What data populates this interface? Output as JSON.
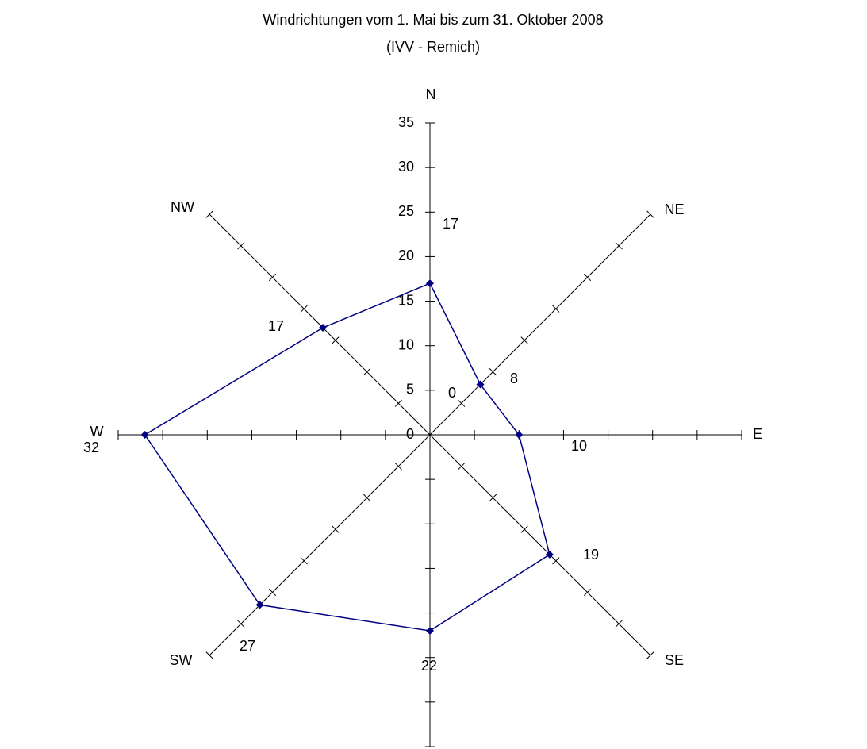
{
  "chart_data": {
    "type": "radar",
    "title": "Windrichtungen vom 1. Mai bis zum 31. Oktober  2008",
    "subtitle": "(IVV - Remich)",
    "categories": [
      "N",
      "NE",
      "E",
      "SE",
      null,
      "SW",
      "W",
      "NW"
    ],
    "values": [
      17,
      8,
      10,
      19,
      22,
      27,
      32,
      17
    ],
    "color": "#000080",
    "ylim": [
      0,
      35
    ],
    "yticks": [
      0,
      5,
      10,
      15,
      20,
      25,
      30,
      35
    ],
    "annotations": [
      "0"
    ]
  }
}
